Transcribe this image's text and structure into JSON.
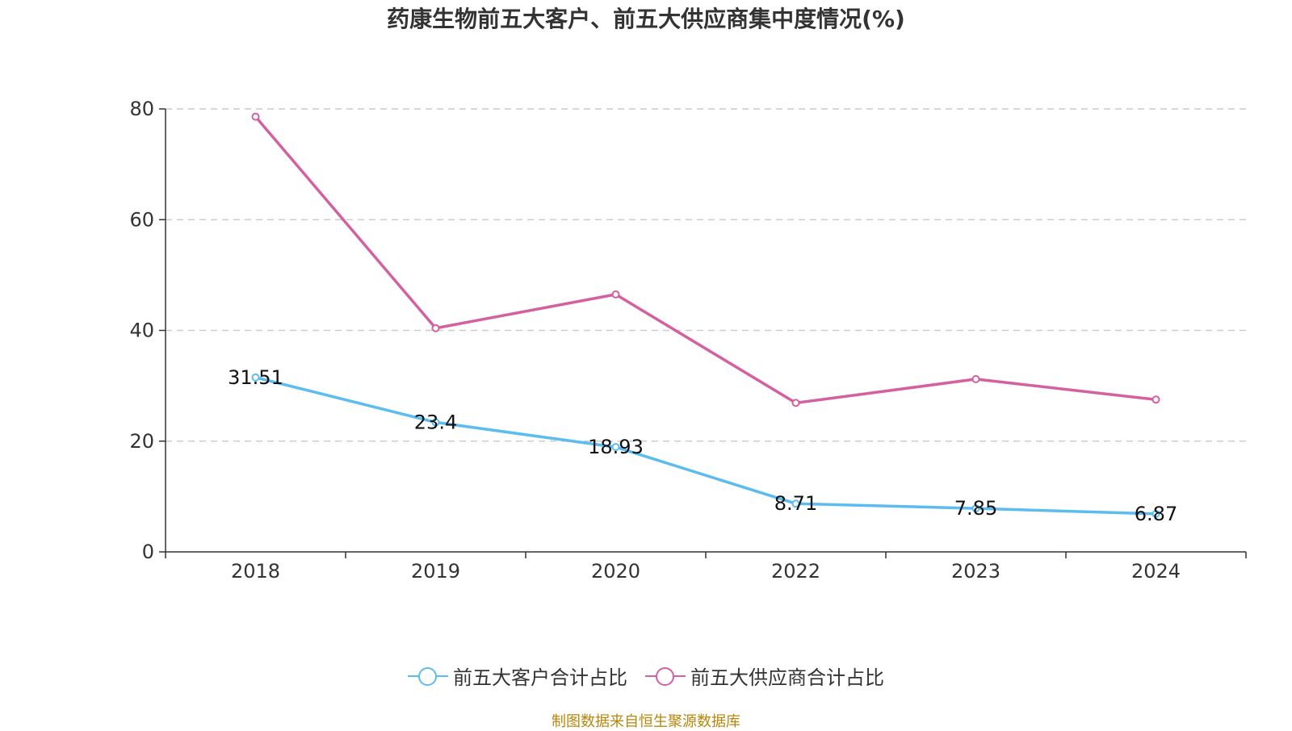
{
  "title": "药康生物前五大客户、前五大供应商集中度情况(%)",
  "source": "制图数据来自恒生聚源数据库",
  "chart_data": {
    "type": "line",
    "title": "药康生物前五大客户、前五大供应商集中度情况(%)",
    "categories": [
      "2018",
      "2019",
      "2020",
      "2022",
      "2023",
      "2024"
    ],
    "ylim": [
      0,
      80
    ],
    "yticks": [
      0,
      20,
      40,
      60,
      80
    ],
    "grid": true,
    "legend_position": "bottom",
    "series": [
      {
        "name": "前五大客户合计占比",
        "color": "#5bbcf0",
        "values": [
          31.51,
          23.4,
          18.93,
          8.71,
          7.85,
          6.87
        ],
        "show_labels": true
      },
      {
        "name": "前五大供应商合计占比",
        "color": "#d4609f",
        "values": [
          78.6,
          40.4,
          46.5,
          26.9,
          31.2,
          27.5
        ],
        "show_labels": false
      }
    ]
  }
}
